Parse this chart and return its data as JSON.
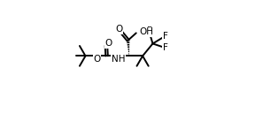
{
  "bg_color": "#ffffff",
  "line_color": "#000000",
  "lw": 1.4,
  "fs": 7.5,
  "xlim": [
    0,
    10
  ],
  "ylim": [
    0,
    10
  ],
  "figsize": [
    2.88,
    1.28
  ],
  "dpi": 100
}
